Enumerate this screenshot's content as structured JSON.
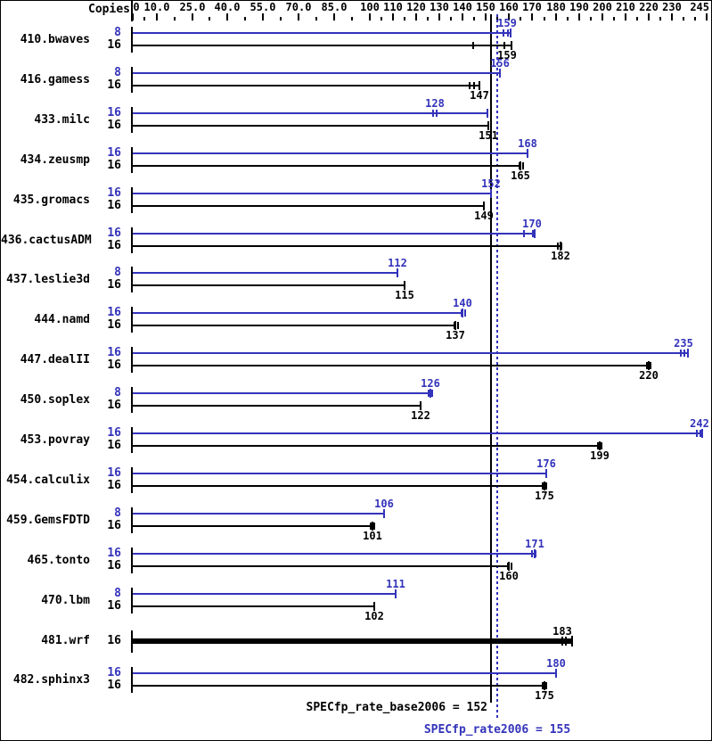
{
  "chart_data": {
    "type": "bar",
    "orientation": "horizontal",
    "copies_header": "Copies",
    "colors": {
      "peak": "#3333bb",
      "base": "#000000"
    },
    "axis": {
      "min": 0,
      "max": 245,
      "ticks": [
        {
          "v": 0,
          "t": "0"
        },
        {
          "v": 10,
          "t": "10.0"
        },
        {
          "v": 25,
          "t": "25.0"
        },
        {
          "v": 40,
          "t": "40.0"
        },
        {
          "v": 55,
          "t": "55.0"
        },
        {
          "v": 70,
          "t": "70.0"
        },
        {
          "v": 85,
          "t": "85.0"
        },
        {
          "v": 100,
          "t": "100"
        },
        {
          "v": 110,
          "t": "110"
        },
        {
          "v": 120,
          "t": "120"
        },
        {
          "v": 130,
          "t": "130"
        },
        {
          "v": 140,
          "t": "140"
        },
        {
          "v": 150,
          "t": "150"
        },
        {
          "v": 160,
          "t": "160"
        },
        {
          "v": 170,
          "t": "170"
        },
        {
          "v": 180,
          "t": "180"
        },
        {
          "v": 190,
          "t": "190"
        },
        {
          "v": 200,
          "t": "200"
        },
        {
          "v": 210,
          "t": "210"
        },
        {
          "v": 220,
          "t": "220"
        },
        {
          "v": 230,
          "t": "230"
        },
        {
          "v": 245,
          "t": "245"
        }
      ],
      "minor_ticks": [
        5,
        17.5,
        32.5,
        47.5,
        62.5,
        77.5,
        92.5,
        105,
        115,
        125,
        135,
        145,
        155,
        165,
        175,
        185,
        195,
        205,
        215,
        225,
        235,
        240
      ]
    },
    "benchmarks": [
      {
        "name": "410.bwaves",
        "bars": [
          {
            "role": "peak",
            "copies": 8,
            "value": 159,
            "marks": [
              157,
              159
            ],
            "bar_to": 160.5
          },
          {
            "role": "base",
            "copies": 16,
            "value": 159,
            "marks": [
              144,
              157.5
            ],
            "bar_to": 161
          }
        ]
      },
      {
        "name": "416.gamess",
        "bars": [
          {
            "role": "peak",
            "copies": 8,
            "value": 156,
            "marks": []
          },
          {
            "role": "base",
            "copies": 16,
            "value": 147,
            "marks": [
              142.5,
              144.5
            ]
          }
        ]
      },
      {
        "name": "433.milc",
        "bars": [
          {
            "role": "peak",
            "copies": 16,
            "value": 128,
            "marks": [
              127,
              128.5
            ],
            "bar_to": 150.5
          },
          {
            "role": "base",
            "copies": 16,
            "value": 151,
            "marks": []
          }
        ]
      },
      {
        "name": "434.zeusmp",
        "bars": [
          {
            "role": "peak",
            "copies": 16,
            "value": 168,
            "marks": []
          },
          {
            "role": "base",
            "copies": 16,
            "value": 165,
            "marks": [
              164,
              165.5
            ]
          }
        ]
      },
      {
        "name": "435.gromacs",
        "bars": [
          {
            "role": "peak",
            "copies": 16,
            "value": 152,
            "marks": []
          },
          {
            "role": "base",
            "copies": 16,
            "value": 149,
            "marks": []
          }
        ]
      },
      {
        "name": "436.cactusADM",
        "bars": [
          {
            "role": "peak",
            "copies": 16,
            "value": 170,
            "marks": [
              166,
              170
            ],
            "bar_to": 171
          },
          {
            "role": "base",
            "copies": 16,
            "value": 182,
            "marks": [
              180.5,
              182
            ]
          }
        ]
      },
      {
        "name": "437.leslie3d",
        "bars": [
          {
            "role": "peak",
            "copies": 8,
            "value": 112,
            "marks": []
          },
          {
            "role": "base",
            "copies": 16,
            "value": 115,
            "marks": []
          }
        ]
      },
      {
        "name": "444.namd",
        "bars": [
          {
            "role": "peak",
            "copies": 16,
            "value": 140,
            "marks": [
              139,
              140.5
            ]
          },
          {
            "role": "base",
            "copies": 16,
            "value": 137,
            "marks": [
              136,
              137.5
            ]
          }
        ]
      },
      {
        "name": "447.dealII",
        "bars": [
          {
            "role": "peak",
            "copies": 16,
            "value": 235,
            "marks": [
              233.5,
              235
            ],
            "bar_to": 237
          },
          {
            "role": "base",
            "copies": 16,
            "value": 220,
            "marks": [
              219,
              220.5
            ]
          }
        ]
      },
      {
        "name": "450.soplex",
        "bars": [
          {
            "role": "peak",
            "copies": 8,
            "value": 126,
            "marks": [
              125,
              126.5
            ]
          },
          {
            "role": "base",
            "copies": 16,
            "value": 122,
            "marks": []
          }
        ]
      },
      {
        "name": "453.povray",
        "bars": [
          {
            "role": "peak",
            "copies": 16,
            "value": 242,
            "marks": [
              240.5,
              242
            ],
            "bar_to": 243
          },
          {
            "role": "base",
            "copies": 16,
            "value": 199,
            "marks": [
              198,
              199.5
            ]
          }
        ]
      },
      {
        "name": "454.calculix",
        "bars": [
          {
            "role": "peak",
            "copies": 16,
            "value": 176,
            "marks": []
          },
          {
            "role": "base",
            "copies": 16,
            "value": 175,
            "marks": [
              174,
              175.5
            ]
          }
        ]
      },
      {
        "name": "459.GemsFDTD",
        "bars": [
          {
            "role": "peak",
            "copies": 8,
            "value": 106,
            "marks": []
          },
          {
            "role": "base",
            "copies": 16,
            "value": 101,
            "marks": [
              100,
              101.5
            ]
          }
        ]
      },
      {
        "name": "465.tonto",
        "bars": [
          {
            "role": "peak",
            "copies": 16,
            "value": 171,
            "marks": [
              169.5,
              171
            ]
          },
          {
            "role": "base",
            "copies": 16,
            "value": 160,
            "marks": [
              159,
              160.5
            ]
          }
        ]
      },
      {
        "name": "470.lbm",
        "bars": [
          {
            "role": "peak",
            "copies": 8,
            "value": 111,
            "marks": []
          },
          {
            "role": "base",
            "copies": 16,
            "value": 102,
            "marks": []
          }
        ]
      },
      {
        "name": "481.wrf",
        "bars": [
          {
            "role": "base",
            "copies": 16,
            "value": 183,
            "marks": [
              182.5,
              184
            ],
            "bar_to": 187,
            "thick": true,
            "label_above": true
          }
        ]
      },
      {
        "name": "482.sphinx3",
        "bars": [
          {
            "role": "peak",
            "copies": 16,
            "value": 180,
            "marks": []
          },
          {
            "role": "base",
            "copies": 16,
            "value": 175,
            "marks": [
              174,
              175.5
            ]
          }
        ]
      }
    ],
    "reference_lines": [
      {
        "label": "SPECfp_rate_base2006 = 152",
        "value": 152,
        "style": "solid",
        "color": "#000000"
      },
      {
        "label": "SPECfp_rate2006 = 155",
        "value": 155,
        "style": "dotted",
        "color": "#3333bb"
      }
    ]
  }
}
